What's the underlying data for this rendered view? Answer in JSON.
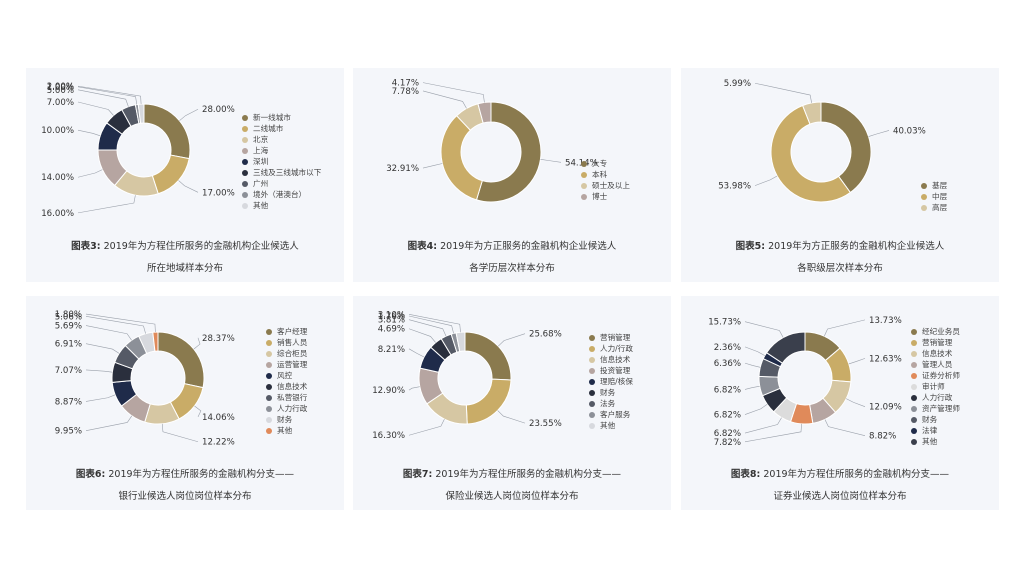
{
  "charts": [
    {
      "caption_label": "图表3:",
      "caption_line1": "2019年为方程住所服务的金融机构企业候选人",
      "caption_line2": "所在地域样本分布",
      "chart_data": {
        "type": "pie",
        "categories": [
          "新一线城市",
          "二线城市",
          "北京",
          "上海",
          "深圳",
          "三线及三线城市以下",
          "广州",
          "境外（港澳台）",
          "其他"
        ],
        "values": [
          28.0,
          17.0,
          16.0,
          14.0,
          10.0,
          7.0,
          5.0,
          1.0,
          2.0
        ],
        "value_labels": [
          "28.00%",
          "17.00%",
          "16.00%",
          "14.00%",
          "10.00%",
          "7.00%",
          "5.00%",
          "1.00%",
          "2.00%"
        ],
        "colors": [
          "#8a7a4e",
          "#c9ac67",
          "#d6c7a3",
          "#b6a5a1",
          "#1f2b4a",
          "#2a2f3d",
          "#555a66",
          "#8c9098",
          "#d7d9de"
        ]
      }
    },
    {
      "caption_label": "图表4:",
      "caption_line1": "2019年为方正服务的金融机构企业候选人",
      "caption_line2": "各学历层次样本分布",
      "chart_data": {
        "type": "pie",
        "categories": [
          "大专",
          "本科",
          "硕士及以上",
          "博士"
        ],
        "values": [
          54.14,
          32.91,
          7.78,
          4.17
        ],
        "value_labels": [
          "54.14%",
          "32.91%",
          "7.78%",
          "4.17%"
        ],
        "colors": [
          "#8a7a4e",
          "#c9ac67",
          "#d6c7a3",
          "#b6a5a1"
        ]
      }
    },
    {
      "caption_label": "图表5:",
      "caption_line1": "2019年为方正服务的金融机构企业候选人",
      "caption_line2": "各职级层次样本分布",
      "chart_data": {
        "type": "pie",
        "categories": [
          "基层",
          "中层",
          "高层"
        ],
        "values": [
          40.03,
          53.98,
          5.99
        ],
        "value_labels": [
          "40.03%",
          "53.98%",
          "5.99%"
        ],
        "colors": [
          "#8a7a4e",
          "#c9ac67",
          "#d6c7a3"
        ]
      }
    },
    {
      "caption_label": "图表6:",
      "caption_line1": "2019年为方程住所服务的金融机构分支——",
      "caption_line2": "银行业候选人岗位岗位样本分布",
      "chart_data": {
        "type": "pie",
        "categories": [
          "客户经理",
          "销售人员",
          "综合柜员",
          "运营管理",
          "风控",
          "信息技术",
          "私营银行",
          "人力行政",
          "财务",
          "其他"
        ],
        "values": [
          28.37,
          14.06,
          12.22,
          9.95,
          8.87,
          7.07,
          6.91,
          5.69,
          5.06,
          1.8
        ],
        "value_labels": [
          "28.37%",
          "14.06%",
          "12.22%",
          "9.95%",
          "8.87%",
          "7.07%",
          "6.91%",
          "5.69%",
          "5.06%",
          "1.80%"
        ],
        "colors": [
          "#8a7a4e",
          "#c9ac67",
          "#d6c7a3",
          "#b6a5a1",
          "#1f2b4a",
          "#2a2f3d",
          "#555a66",
          "#8c9098",
          "#d7d9de",
          "#e08a5a"
        ]
      }
    },
    {
      "caption_label": "图表7:",
      "caption_line1": "2019年为方程住所服务的金融机构分支——",
      "caption_line2": "保险业候选人岗位岗位样本分布",
      "chart_data": {
        "type": "pie",
        "categories": [
          "营销管理",
          "人力/行政",
          "信息技术",
          "投资管理",
          "理赔/核保",
          "财务",
          "法务",
          "客户服务",
          "其他"
        ],
        "values": [
          25.68,
          23.55,
          16.3,
          12.9,
          8.21,
          4.69,
          3.81,
          1.76,
          3.1
        ],
        "value_labels": [
          "25.68%",
          "23.55%",
          "16.30%",
          "12.90%",
          "8.21%",
          "4.69%",
          "3.81%",
          "1.76%",
          "3.10%"
        ],
        "colors": [
          "#8a7a4e",
          "#c9ac67",
          "#d6c7a3",
          "#b6a5a1",
          "#1f2b4a",
          "#2a2f3d",
          "#555a66",
          "#8c9098",
          "#d7d9de"
        ]
      }
    },
    {
      "caption_label": "图表8:",
      "caption_line1": "2019年为方程住所服务的金融机构分支——",
      "caption_line2": "证券业候选人岗位岗位样本分布",
      "chart_data": {
        "type": "pie",
        "categories": [
          "经纪业务员",
          "营销管理",
          "信息技术",
          "管理人员",
          "证券分析师",
          "审计师",
          "人力行政",
          "资产管理师",
          "财务",
          "法律",
          "其他"
        ],
        "values": [
          13.73,
          12.63,
          12.09,
          8.82,
          7.82,
          6.82,
          6.82,
          6.82,
          6.36,
          2.36,
          15.73
        ],
        "value_labels": [
          "13.73%",
          "12.63%",
          "12.09%",
          "8.82%",
          "7.82%",
          "6.82%",
          "6.82%",
          "6.82%",
          "6.36%",
          "2.36%",
          "15.73%"
        ],
        "colors": [
          "#8a7a4e",
          "#c9ac67",
          "#d6c7a3",
          "#b6a5a1",
          "#e08a5a",
          "#dcdcdc",
          "#2a2f3d",
          "#8c9098",
          "#555a66",
          "#1f2b4a",
          "#3a3f4c"
        ]
      }
    }
  ]
}
